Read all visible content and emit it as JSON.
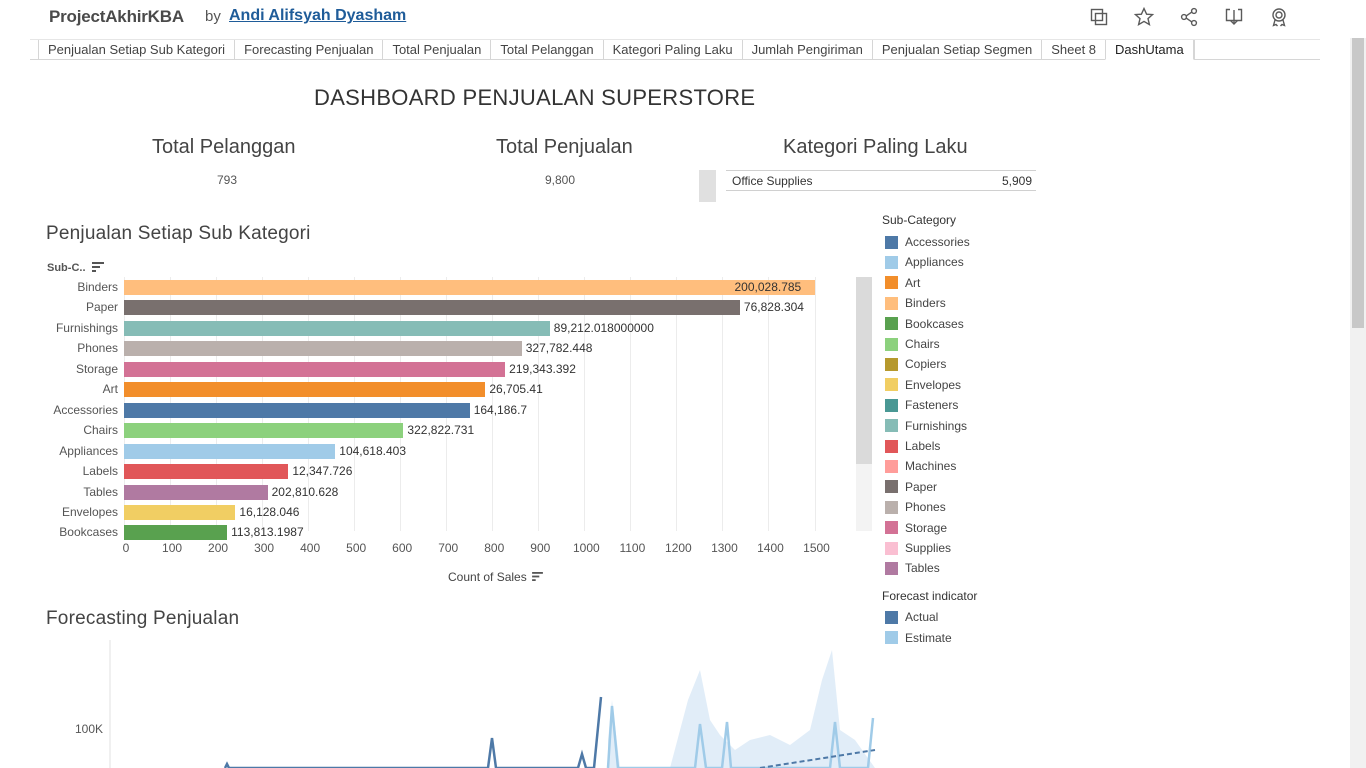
{
  "header": {
    "brand": "ProjectAkhirKBA",
    "by": "by",
    "author": "Andi Alifsyah Dyasham",
    "icons": [
      "copy-icon",
      "star-icon",
      "share-icon",
      "download-icon",
      "badge-icon"
    ]
  },
  "tabs": [
    "Penjualan Setiap Sub Kategori",
    "Forecasting Penjualan",
    "Total Penjualan",
    "Total Pelanggan",
    "Kategori Paling Laku",
    "Jumlah Pengiriman",
    "Penjualan Setiap Segmen",
    "Sheet 8",
    "DashUtama"
  ],
  "active_tab": "DashUtama",
  "dashboard": {
    "title": "DASHBOARD PENJUALAN SUPERSTORE",
    "kpis": {
      "pelanggan": {
        "title": "Total Pelanggan",
        "value": "793"
      },
      "penjualan": {
        "title": "Total Penjualan",
        "value": "9,800"
      },
      "kategori": {
        "title": "Kategori Paling Laku",
        "name": "Office Supplies",
        "value": "5,909"
      }
    },
    "subkat_title": "Penjualan Setiap Sub Kategori",
    "forecast_title": "Forecasting Penjualan"
  },
  "chart_data": [
    {
      "type": "bar",
      "orientation": "horizontal",
      "title": "Penjualan Setiap Sub Kategori",
      "ylabel": "Sub-C..",
      "xlabel": "Count of Sales",
      "xlim": [
        0,
        1600
      ],
      "x_ticks": [
        "0",
        "100",
        "200",
        "300",
        "400",
        "500",
        "600",
        "700",
        "800",
        "900",
        "1000",
        "1100",
        "1200",
        "1300",
        "1400",
        "1500"
      ],
      "categories": [
        "Binders",
        "Paper",
        "Furnishings",
        "Phones",
        "Storage",
        "Art",
        "Accessories",
        "Chairs",
        "Appliances",
        "Labels",
        "Tables",
        "Envelopes",
        "Bookcases"
      ],
      "values": [
        1500,
        1338,
        925,
        864,
        828,
        785,
        751,
        607,
        459,
        357,
        312,
        242,
        224
      ],
      "labels": [
        "200,028.785",
        "76,828.304",
        "89,212.018000000",
        "327,782.448",
        "219,343.392",
        "26,705.41",
        "164,186.7",
        "322,822.731",
        "104,618.403",
        "12,347.726",
        "202,810.628",
        "16,128.046",
        "113,813.1987"
      ],
      "colors": [
        "#ffbe7d",
        "#79706e",
        "#86bcb6",
        "#bab0ac",
        "#d37295",
        "#f28e2b",
        "#4e79a7",
        "#8cd17d",
        "#a0cbe8",
        "#e15759",
        "#b07aa1",
        "#f1ce63",
        "#59a14f"
      ],
      "legend": {
        "title": "Sub-Category",
        "items": [
          {
            "name": "Accessories",
            "color": "#4e79a7"
          },
          {
            "name": "Appliances",
            "color": "#a0cbe8"
          },
          {
            "name": "Art",
            "color": "#f28e2b"
          },
          {
            "name": "Binders",
            "color": "#ffbe7d"
          },
          {
            "name": "Bookcases",
            "color": "#59a14f"
          },
          {
            "name": "Chairs",
            "color": "#8cd17d"
          },
          {
            "name": "Copiers",
            "color": "#b6992d"
          },
          {
            "name": "Envelopes",
            "color": "#f1ce63"
          },
          {
            "name": "Fasteners",
            "color": "#499894"
          },
          {
            "name": "Furnishings",
            "color": "#86bcb6"
          },
          {
            "name": "Labels",
            "color": "#e15759"
          },
          {
            "name": "Machines",
            "color": "#ff9d9a"
          },
          {
            "name": "Paper",
            "color": "#79706e"
          },
          {
            "name": "Phones",
            "color": "#bab0ac"
          },
          {
            "name": "Storage",
            "color": "#d37295"
          },
          {
            "name": "Supplies",
            "color": "#fabfd2"
          },
          {
            "name": "Tables",
            "color": "#b07aa1"
          }
        ]
      }
    },
    {
      "type": "line",
      "title": "Forecasting Penjualan",
      "y_ticks": [
        "100K"
      ],
      "legend": {
        "title": "Forecast indicator",
        "items": [
          {
            "name": "Actual",
            "color": "#4e79a7"
          },
          {
            "name": "Estimate",
            "color": "#a0cbe8"
          }
        ]
      }
    }
  ]
}
